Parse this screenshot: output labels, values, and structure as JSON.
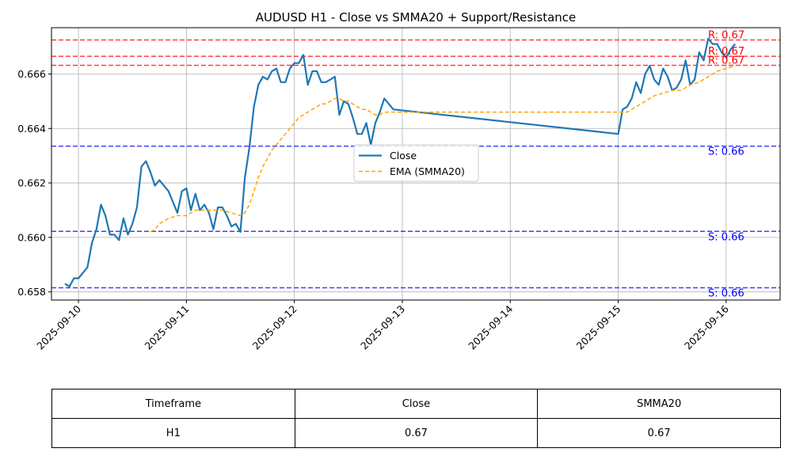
{
  "chart_data": {
    "type": "line",
    "title": "AUDUSD H1 - Close vs SMMA20 + Support/Resistance",
    "xlabel": "",
    "ylabel": "",
    "x_ticks": [
      "2025-09-10",
      "2025-09-11",
      "2025-09-12",
      "2025-09-13",
      "2025-09-14",
      "2025-09-15",
      "2025-09-16"
    ],
    "x_range": [
      "2025-09-09 18:00",
      "2025-09-16 12:00"
    ],
    "y_ticks": [
      "0.658",
      "0.660",
      "0.662",
      "0.664",
      "0.666"
    ],
    "ylim": [
      0.6577,
      0.6677
    ],
    "grid": true,
    "legend_position": "center",
    "series": [
      {
        "name": "Close",
        "style": "solid",
        "color": "#1f77b4",
        "points": [
          [
            "2025-09-09 21:00",
            0.6583
          ],
          [
            "2025-09-09 22:00",
            0.6582
          ],
          [
            "2025-09-09 23:00",
            0.6585
          ],
          [
            "2025-09-10 00:00",
            0.6585
          ],
          [
            "2025-09-10 02:00",
            0.6589
          ],
          [
            "2025-09-10 03:00",
            0.6598
          ],
          [
            "2025-09-10 04:00",
            0.6603
          ],
          [
            "2025-09-10 05:00",
            0.6612
          ],
          [
            "2025-09-10 06:00",
            0.6608
          ],
          [
            "2025-09-10 07:00",
            0.6601
          ],
          [
            "2025-09-10 08:00",
            0.6601
          ],
          [
            "2025-09-10 09:00",
            0.6599
          ],
          [
            "2025-09-10 10:00",
            0.6607
          ],
          [
            "2025-09-10 11:00",
            0.6601
          ],
          [
            "2025-09-10 12:00",
            0.6605
          ],
          [
            "2025-09-10 13:00",
            0.6611
          ],
          [
            "2025-09-10 14:00",
            0.6626
          ],
          [
            "2025-09-10 15:00",
            0.6628
          ],
          [
            "2025-09-10 16:00",
            0.6624
          ],
          [
            "2025-09-10 17:00",
            0.6619
          ],
          [
            "2025-09-10 18:00",
            0.6621
          ],
          [
            "2025-09-10 20:00",
            0.6617
          ],
          [
            "2025-09-10 22:00",
            0.6609
          ],
          [
            "2025-09-10 23:00",
            0.6617
          ],
          [
            "2025-09-11 00:00",
            0.6618
          ],
          [
            "2025-09-11 01:00",
            0.661
          ],
          [
            "2025-09-11 02:00",
            0.6616
          ],
          [
            "2025-09-11 03:00",
            0.661
          ],
          [
            "2025-09-11 04:00",
            0.6612
          ],
          [
            "2025-09-11 05:00",
            0.6609
          ],
          [
            "2025-09-11 06:00",
            0.6603
          ],
          [
            "2025-09-11 07:00",
            0.6611
          ],
          [
            "2025-09-11 08:00",
            0.6611
          ],
          [
            "2025-09-11 09:00",
            0.6608
          ],
          [
            "2025-09-11 10:00",
            0.6604
          ],
          [
            "2025-09-11 11:00",
            0.6605
          ],
          [
            "2025-09-11 12:00",
            0.6602
          ],
          [
            "2025-09-11 13:00",
            0.6622
          ],
          [
            "2025-09-11 14:00",
            0.6633
          ],
          [
            "2025-09-11 15:00",
            0.6648
          ],
          [
            "2025-09-11 16:00",
            0.6656
          ],
          [
            "2025-09-11 17:00",
            0.6659
          ],
          [
            "2025-09-11 18:00",
            0.6658
          ],
          [
            "2025-09-11 19:00",
            0.6661
          ],
          [
            "2025-09-11 20:00",
            0.6662
          ],
          [
            "2025-09-11 21:00",
            0.6657
          ],
          [
            "2025-09-11 22:00",
            0.6657
          ],
          [
            "2025-09-11 23:00",
            0.6662
          ],
          [
            "2025-09-12 00:00",
            0.6664
          ],
          [
            "2025-09-12 01:00",
            0.6664
          ],
          [
            "2025-09-12 02:00",
            0.6667
          ],
          [
            "2025-09-12 03:00",
            0.6656
          ],
          [
            "2025-09-12 04:00",
            0.6661
          ],
          [
            "2025-09-12 05:00",
            0.6661
          ],
          [
            "2025-09-12 06:00",
            0.6657
          ],
          [
            "2025-09-12 07:00",
            0.6657
          ],
          [
            "2025-09-12 08:00",
            0.6658
          ],
          [
            "2025-09-12 09:00",
            0.6659
          ],
          [
            "2025-09-12 10:00",
            0.6645
          ],
          [
            "2025-09-12 11:00",
            0.665
          ],
          [
            "2025-09-12 12:00",
            0.6649
          ],
          [
            "2025-09-12 13:00",
            0.6644
          ],
          [
            "2025-09-12 14:00",
            0.6638
          ],
          [
            "2025-09-12 15:00",
            0.6638
          ],
          [
            "2025-09-12 16:00",
            0.6642
          ],
          [
            "2025-09-12 17:00",
            0.6634
          ],
          [
            "2025-09-12 18:00",
            0.6642
          ],
          [
            "2025-09-12 19:00",
            0.6646
          ],
          [
            "2025-09-12 20:00",
            0.6651
          ],
          [
            "2025-09-12 21:00",
            0.6649
          ],
          [
            "2025-09-12 22:00",
            0.6647
          ],
          [
            "2025-09-15 00:00",
            0.6638
          ],
          [
            "2025-09-15 01:00",
            0.6647
          ],
          [
            "2025-09-15 02:00",
            0.6648
          ],
          [
            "2025-09-15 03:00",
            0.6651
          ],
          [
            "2025-09-15 04:00",
            0.6657
          ],
          [
            "2025-09-15 05:00",
            0.6653
          ],
          [
            "2025-09-15 06:00",
            0.666
          ],
          [
            "2025-09-15 07:00",
            0.6663
          ],
          [
            "2025-09-15 08:00",
            0.6658
          ],
          [
            "2025-09-15 09:00",
            0.6656
          ],
          [
            "2025-09-15 10:00",
            0.6662
          ],
          [
            "2025-09-15 11:00",
            0.6659
          ],
          [
            "2025-09-15 12:00",
            0.6654
          ],
          [
            "2025-09-15 13:00",
            0.6655
          ],
          [
            "2025-09-15 14:00",
            0.6658
          ],
          [
            "2025-09-15 15:00",
            0.6665
          ],
          [
            "2025-09-15 16:00",
            0.6656
          ],
          [
            "2025-09-15 17:00",
            0.6658
          ],
          [
            "2025-09-15 18:00",
            0.6668
          ],
          [
            "2025-09-15 19:00",
            0.6665
          ],
          [
            "2025-09-15 20:00",
            0.6673
          ],
          [
            "2025-09-15 21:00",
            0.6671
          ],
          [
            "2025-09-15 22:00",
            0.6671
          ],
          [
            "2025-09-15 23:00",
            0.6668
          ],
          [
            "2025-09-16 00:00",
            0.6666
          ],
          [
            "2025-09-16 01:00",
            0.6669
          ],
          [
            "2025-09-16 02:00",
            0.6671
          ]
        ]
      },
      {
        "name": "EMA (SMMA20)",
        "style": "dashed",
        "color": "#ffa500",
        "points": [
          [
            "2025-09-10 16:00",
            0.6602
          ],
          [
            "2025-09-10 17:00",
            0.6603
          ],
          [
            "2025-09-10 18:00",
            0.6605
          ],
          [
            "2025-09-10 20:00",
            0.6607
          ],
          [
            "2025-09-10 22:00",
            0.6608
          ],
          [
            "2025-09-11 00:00",
            0.6608
          ],
          [
            "2025-09-11 02:00",
            0.661
          ],
          [
            "2025-09-11 04:00",
            0.661
          ],
          [
            "2025-09-11 06:00",
            0.661
          ],
          [
            "2025-09-11 08:00",
            0.661
          ],
          [
            "2025-09-11 10:00",
            0.6609
          ],
          [
            "2025-09-11 12:00",
            0.6608
          ],
          [
            "2025-09-11 13:00",
            0.6609
          ],
          [
            "2025-09-11 14:00",
            0.6612
          ],
          [
            "2025-09-11 15:00",
            0.6617
          ],
          [
            "2025-09-11 16:00",
            0.6622
          ],
          [
            "2025-09-11 17:00",
            0.6626
          ],
          [
            "2025-09-11 18:00",
            0.6629
          ],
          [
            "2025-09-11 19:00",
            0.6632
          ],
          [
            "2025-09-11 20:00",
            0.6634
          ],
          [
            "2025-09-11 21:00",
            0.6636
          ],
          [
            "2025-09-11 22:00",
            0.6638
          ],
          [
            "2025-09-11 23:00",
            0.664
          ],
          [
            "2025-09-12 00:00",
            0.6642
          ],
          [
            "2025-09-12 01:00",
            0.6644
          ],
          [
            "2025-09-12 02:00",
            0.6645
          ],
          [
            "2025-09-12 03:00",
            0.6646
          ],
          [
            "2025-09-12 04:00",
            0.6647
          ],
          [
            "2025-09-12 05:00",
            0.6648
          ],
          [
            "2025-09-12 06:00",
            0.6649
          ],
          [
            "2025-09-12 07:00",
            0.6649
          ],
          [
            "2025-09-12 08:00",
            0.665
          ],
          [
            "2025-09-12 09:00",
            0.6651
          ],
          [
            "2025-09-12 10:00",
            0.6651
          ],
          [
            "2025-09-12 11:00",
            0.665
          ],
          [
            "2025-09-12 12:00",
            0.665
          ],
          [
            "2025-09-12 13:00",
            0.6649
          ],
          [
            "2025-09-12 14:00",
            0.6648
          ],
          [
            "2025-09-12 15:00",
            0.6647
          ],
          [
            "2025-09-12 16:00",
            0.6647
          ],
          [
            "2025-09-12 17:00",
            0.6646
          ],
          [
            "2025-09-12 18:00",
            0.6645
          ],
          [
            "2025-09-12 19:00",
            0.6645
          ],
          [
            "2025-09-12 20:00",
            0.6646
          ],
          [
            "2025-09-12 22:00",
            0.6646
          ],
          [
            "2025-09-15 00:00",
            0.6646
          ],
          [
            "2025-09-15 02:00",
            0.6646
          ],
          [
            "2025-09-15 04:00",
            0.6648
          ],
          [
            "2025-09-15 06:00",
            0.665
          ],
          [
            "2025-09-15 08:00",
            0.6652
          ],
          [
            "2025-09-15 10:00",
            0.6653
          ],
          [
            "2025-09-15 12:00",
            0.6654
          ],
          [
            "2025-09-15 14:00",
            0.6654
          ],
          [
            "2025-09-15 16:00",
            0.6656
          ],
          [
            "2025-09-15 18:00",
            0.6657
          ],
          [
            "2025-09-15 20:00",
            0.6659
          ],
          [
            "2025-09-15 22:00",
            0.6661
          ],
          [
            "2025-09-16 00:00",
            0.6662
          ],
          [
            "2025-09-16 02:00",
            0.6663
          ]
        ]
      }
    ],
    "levels": [
      {
        "kind": "resistance",
        "value": 0.66725,
        "label": "R: 0.67",
        "color": "#ff0000"
      },
      {
        "kind": "resistance",
        "value": 0.66665,
        "label": "R: 0.67",
        "color": "#ff0000"
      },
      {
        "kind": "resistance",
        "value": 0.66632,
        "label": "R: 0.67",
        "color": "#ff0000"
      },
      {
        "kind": "support",
        "value": 0.66335,
        "label": "S: 0.66",
        "color": "#0000ff"
      },
      {
        "kind": "support",
        "value": 0.66022,
        "label": "S: 0.66",
        "color": "#0000ff"
      },
      {
        "kind": "support",
        "value": 0.65815,
        "label": "S: 0.66",
        "color": "#0000ff"
      }
    ]
  },
  "table": {
    "headers": [
      "Timeframe",
      "Close",
      "SMMA20"
    ],
    "rows": [
      [
        "H1",
        "0.67",
        "0.67"
      ]
    ]
  }
}
